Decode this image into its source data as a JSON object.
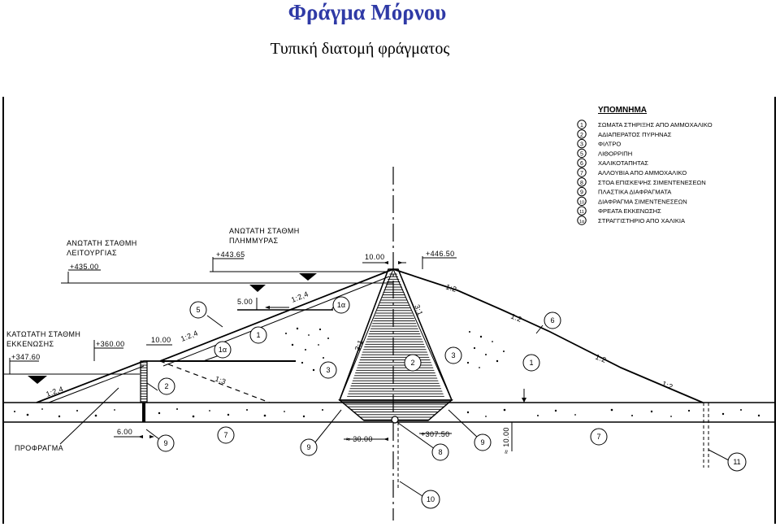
{
  "header": {
    "title": "Φράγμα Μόρνου",
    "subtitle": "Τυπική διατομή φράγματος"
  },
  "legend": {
    "title": "ΥΠΟΜΝΗΜΑ",
    "items": [
      {
        "num": "1",
        "text": "ΣΩΜΑΤΑ ΣΤΗΡΙΞΗΣ ΑΠΟ ΑΜΜΟΧΑΛΙΚΟ"
      },
      {
        "num": "2",
        "text": "ΑΔΙΑΠΕΡΑΤΟΣ ΠΥΡΗΝΑΣ"
      },
      {
        "num": "3",
        "text": "ΦΙΛΤΡΟ"
      },
      {
        "num": "5",
        "text": "ΛΙΘΟΡΡΙΠΗ"
      },
      {
        "num": "6",
        "text": "ΧΑΛΙΚΟΤΑΠΗΤΑΣ"
      },
      {
        "num": "7",
        "text": "ΑΛΛΟΥΒΙΑ ΑΠΟ ΑΜΜΟΧΑΛΙΚΟ"
      },
      {
        "num": "8",
        "text": "ΣΤΟΑ ΕΠΙΣΚΕΨΗΣ ΣΙΜΕΝΤΕΝΕΣΕΩΝ"
      },
      {
        "num": "9",
        "text": "ΠΛΑΣΤΙΚΑ ΔΙΑΦΡΑΓΜΑΤΑ"
      },
      {
        "num": "10",
        "text": "ΔΙΑΦΡΑΓΜΑ ΣΙΜΕΝΤΕΝΕΣΕΩΝ"
      },
      {
        "num": "11",
        "text": "ΦΡΕΑΤΑ ΕΚΚΕΝΩΣΗΣ"
      },
      {
        "num": "1α",
        "text": "ΣΤΡΑΓΓΙΣΤΗΡΙΟ ΑΠΟ ΧΑΛΙΚΙΑ"
      }
    ]
  },
  "levels": {
    "operation_title_1": "ΑΝΩΤΑΤΗ ΣΤΑΘΜΗ",
    "operation_title_2": "ΛΕΙΤΟΥΡΓΙΑΣ",
    "operation_value": "+435.00",
    "flood_title_1": "ΑΝΩΤΑΤΗ ΣΤΑΘΜΗ",
    "flood_title_2": "ΠΛΗΜΜΥΡΑΣ",
    "flood_value": "+443.65",
    "min_title_1": "ΚΑΤΩΤΑΤΗ ΣΤΑΘΜΗ",
    "min_title_2": "ΕΚΚΕΝΩΣΗΣ",
    "min_value": "+347.60",
    "crest_value": "+446.50",
    "cofferdam_value": "+360.00",
    "gallery_value": "+307.50"
  },
  "dimensions": {
    "crest_width": "10.00",
    "berm_width": "5.00",
    "cofferdam_crest": "10.00",
    "cutoff_width": "6.00",
    "gallery_span": "≈ 30.00",
    "depth": "≈ 10.00"
  },
  "slopes": {
    "s124": "1:2,4",
    "s13": "1:3",
    "s12": "1:2",
    "s31": "3:1"
  },
  "labels": {
    "cofferdam": "ΠΡΟΦΡΑΓΜΑ",
    "c1": "1",
    "c1a": "1α",
    "c2": "2",
    "c3": "3",
    "c5": "5",
    "c6": "6",
    "c7": "7",
    "c8": "8",
    "c9": "9",
    "c10": "10",
    "c11": "11"
  }
}
